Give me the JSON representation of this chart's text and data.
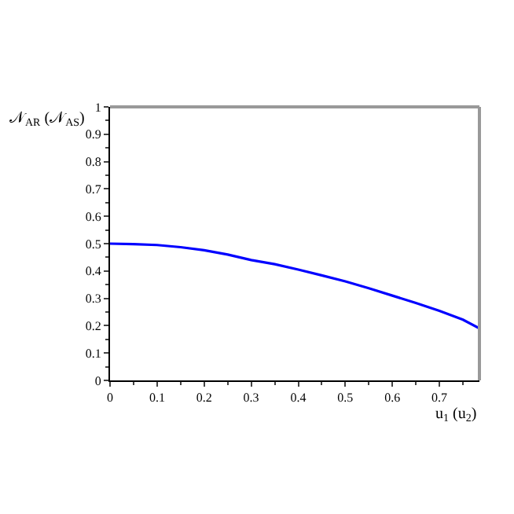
{
  "chart_data": {
    "type": "line",
    "xlabel": "u$_{1}$ (u$_{2}$)",
    "ylabel": "𝒩$_{AR}$ (𝒩$_{AS}$)",
    "x": [
      0,
      0.05,
      0.1,
      0.15,
      0.2,
      0.25,
      0.3,
      0.35,
      0.4,
      0.45,
      0.5,
      0.55,
      0.6,
      0.65,
      0.7,
      0.75,
      0.785
    ],
    "series": [
      {
        "color": "#0000ff",
        "values": [
          0.5,
          0.498,
          0.495,
          0.487,
          0.476,
          0.46,
          0.44,
          0.425,
          0.405,
          0.384,
          0.362,
          0.337,
          0.31,
          0.283,
          0.254,
          0.222,
          0.19
        ]
      }
    ],
    "xlim": [
      0,
      0.785
    ],
    "xticks": [
      0,
      0.1,
      0.2,
      0.3,
      0.4,
      0.5,
      0.6,
      0.7
    ],
    "ylim": [
      0,
      1
    ],
    "yticks": [
      0,
      0.1,
      0.2,
      0.3,
      0.4,
      0.5,
      0.6,
      0.7,
      0.8,
      0.9,
      1
    ],
    "line_style": "solid",
    "marker": "none"
  }
}
